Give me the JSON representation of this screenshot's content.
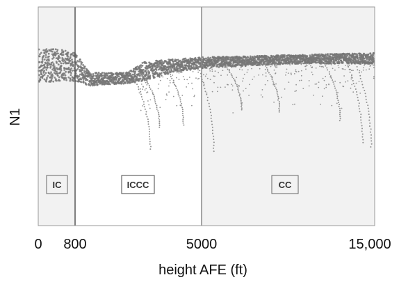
{
  "chart_data": {
    "type": "scatter",
    "title": "",
    "xlabel": "height AFE (ft)",
    "ylabel": "N1",
    "x_ticks": [
      "0",
      "800",
      "5000",
      "15,000"
    ],
    "x_tick_values": [
      0,
      800,
      5000,
      15000
    ],
    "x_scale": "piecewise",
    "y_ticks": [],
    "grid": false,
    "legend": "none",
    "phase_regions": [
      {
        "label": "IC",
        "x_start": 0,
        "x_end": 800,
        "shaded": true
      },
      {
        "label": "ICCC",
        "x_start": 800,
        "x_end": 5000,
        "shaded": false
      },
      {
        "label": "CC",
        "x_start": 5000,
        "x_end": 15000,
        "shaded": true
      }
    ],
    "band_upper": [
      {
        "x": 0,
        "y": 0.81
      },
      {
        "x": 400,
        "y": 0.81
      },
      {
        "x": 800,
        "y": 0.79
      },
      {
        "x": 1300,
        "y": 0.7
      },
      {
        "x": 2500,
        "y": 0.7
      },
      {
        "x": 3100,
        "y": 0.75
      },
      {
        "x": 4000,
        "y": 0.76
      },
      {
        "x": 5000,
        "y": 0.77
      },
      {
        "x": 10000,
        "y": 0.78
      },
      {
        "x": 15000,
        "y": 0.79
      }
    ],
    "band_lower": [
      {
        "x": 0,
        "y": 0.65
      },
      {
        "x": 400,
        "y": 0.66
      },
      {
        "x": 800,
        "y": 0.66
      },
      {
        "x": 1300,
        "y": 0.64
      },
      {
        "x": 2500,
        "y": 0.65
      },
      {
        "x": 3100,
        "y": 0.66
      },
      {
        "x": 4000,
        "y": 0.7
      },
      {
        "x": 5000,
        "y": 0.72
      },
      {
        "x": 10000,
        "y": 0.74
      },
      {
        "x": 15000,
        "y": 0.74
      }
    ],
    "low_excursions": [
      {
        "x": 3300,
        "y_min": 0.35
      },
      {
        "x": 3600,
        "y_min": 0.45
      },
      {
        "x": 4400,
        "y_min": 0.46
      },
      {
        "x": 5700,
        "y_min": 0.34
      },
      {
        "x": 7300,
        "y_min": 0.53
      },
      {
        "x": 9500,
        "y_min": 0.52
      },
      {
        "x": 13000,
        "y_min": 0.48
      },
      {
        "x": 14300,
        "y_min": 0.38
      },
      {
        "x": 14800,
        "y_min": 0.36
      }
    ],
    "colors": {
      "points": "#8a8a8a",
      "band": "#777777",
      "shade": "#f2f2f2",
      "boundary": "#555555",
      "frame": "#999999"
    }
  }
}
